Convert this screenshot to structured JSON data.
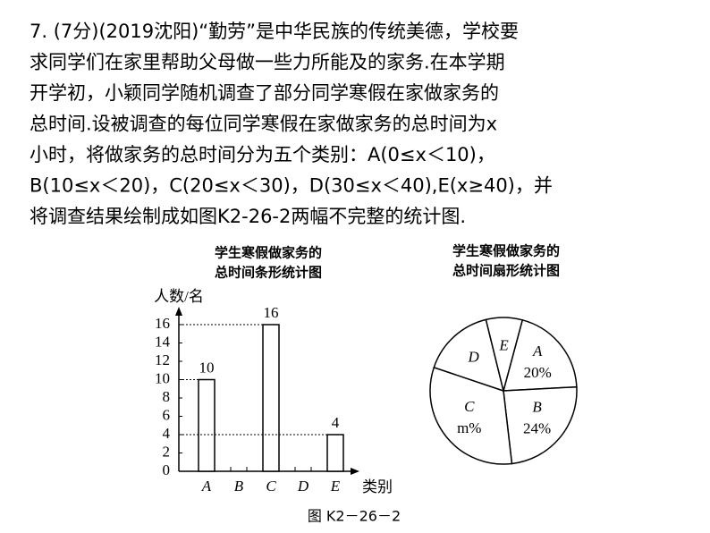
{
  "problem": [
    "7. (7分)(2019沈阳)“勤劳”是中华民族的传统美德，学校要",
    "求同学们在家里帮助父母做一些力所能及的家务.在本学期",
    "开学初，小颖同学随机调查了部分同学寒假在家做家务的",
    "总时间.设被调查的每位同学寒假在家做家务的总时间为x",
    "小时，将做家务的总时间分为五个类别：A(0≤x＜10)，",
    "B(10≤x＜20)，C(20≤x＜30)，D(30≤x＜40),E(x≥40)，并",
    "将调查结果绘制成如图K2-26-2两幅不完整的统计图."
  ],
  "chart_data": [
    {
      "type": "bar",
      "title": [
        "学生寒假做家务的",
        "总时间条形统计图"
      ],
      "y_label": "人数/名",
      "x_label": "类别",
      "categories": [
        "A",
        "B",
        "C",
        "D",
        "E"
      ],
      "values": [
        10,
        null,
        16,
        null,
        4
      ],
      "color": "#ffffff",
      "ylim": [
        0,
        16
      ],
      "yticks": [
        0,
        2,
        4,
        6,
        8,
        10,
        12,
        14,
        16
      ]
    },
    {
      "type": "pie",
      "title": [
        "学生寒假做家务的",
        "总时间扇形统计图"
      ],
      "categories": [
        "A",
        "B",
        "C",
        "D",
        "E"
      ],
      "values": [
        20,
        24,
        32,
        16,
        8
      ],
      "value_labels": [
        "20%",
        "24%",
        "m%",
        null,
        null
      ],
      "color": "#ffffff"
    }
  ],
  "caption": "图 K2－26－2"
}
